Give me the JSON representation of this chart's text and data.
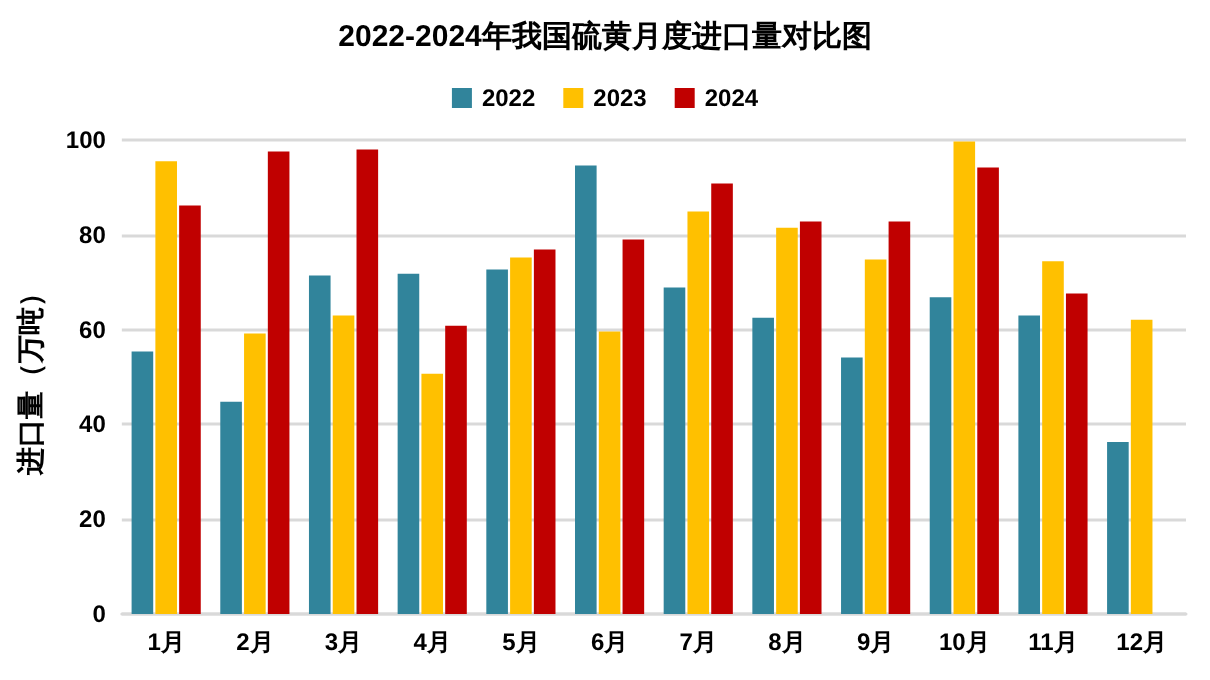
{
  "chart_data": {
    "type": "bar",
    "title": "2022-2024年我国硫黄月度进口量对比图",
    "ylabel": "进口量（万吨）",
    "categories": [
      "1月",
      "2月",
      "3月",
      "4月",
      "5月",
      "6月",
      "7月",
      "8月",
      "9月",
      "10月",
      "11月",
      "12月"
    ],
    "series": [
      {
        "name": "2022",
        "color": "#31849b",
        "values": [
          55.4,
          44.8,
          71.4,
          71.8,
          72.7,
          94.6,
          68.9,
          62.5,
          54.1,
          66.8,
          63.0,
          36.3
        ]
      },
      {
        "name": "2023",
        "color": "#ffc000",
        "values": [
          95.5,
          59.2,
          63.0,
          50.7,
          75.2,
          59.6,
          84.9,
          81.5,
          74.8,
          99.7,
          74.4,
          62.1
        ]
      },
      {
        "name": "2024",
        "color": "#c00000",
        "values": [
          86.2,
          97.6,
          98.0,
          60.8,
          76.9,
          79.0,
          90.8,
          82.8,
          82.8,
          94.2,
          67.6,
          null
        ]
      }
    ],
    "ylim": [
      0,
      100
    ],
    "yticks": [
      0,
      20,
      40,
      60,
      80,
      100
    ],
    "grid": "y",
    "legend": "top"
  }
}
